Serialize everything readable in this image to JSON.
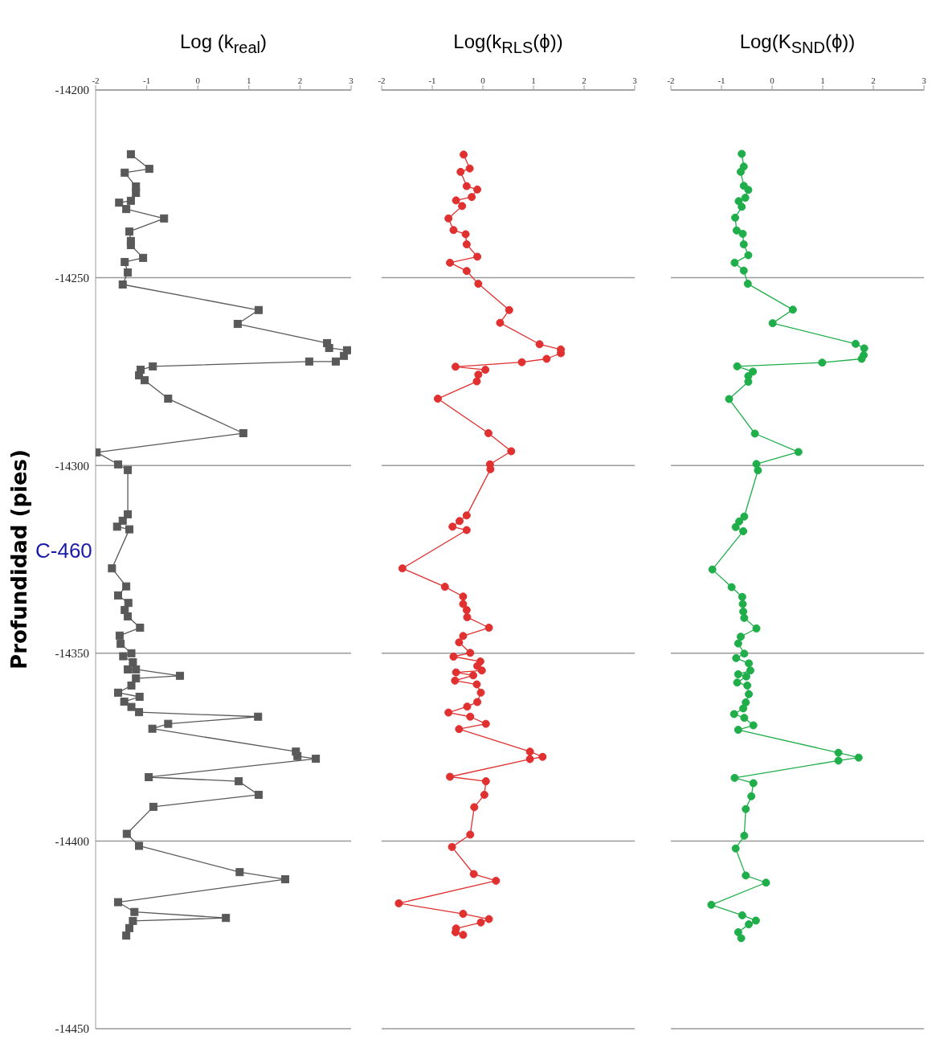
{
  "chart_data": [
    {
      "type": "line",
      "title": "Log (k$_{real}$)",
      "ylabel": "Profundidad (pies)",
      "annotations": [
        "C-460"
      ],
      "color": "#595959",
      "marker": "square",
      "grid": "y",
      "xlim": [
        -2,
        3
      ],
      "xticks": [
        -2,
        -1,
        0,
        1,
        2,
        3
      ],
      "ylim": [
        -14450,
        -14200
      ],
      "yticks": [
        -14450,
        -14400,
        -14350,
        -14300,
        -14250,
        -14200
      ],
      "x": [
        -1.31,
        -0.95,
        -1.43,
        -1.21,
        -1.21,
        -1.31,
        -1.54,
        -1.4,
        -0.66,
        -1.34,
        -1.31,
        -1.31,
        -1.07,
        -1.43,
        -1.37,
        -1.47,
        1.19,
        0.78,
        2.53,
        2.57,
        2.92,
        2.86,
        2.7,
        2.18,
        -0.88,
        -1.12,
        -1.15,
        -1.04,
        -0.58,
        0.89,
        -1.98,
        -1.56,
        -1.37,
        -1.37,
        -1.47,
        -1.58,
        -1.34,
        -1.68,
        -1.4,
        -1.56,
        -1.36,
        -1.43,
        -1.37,
        -1.13,
        -1.53,
        -1.51,
        -1.3,
        -1.46,
        -1.27,
        -1.37,
        -1.21,
        -0.35,
        -1.21,
        -1.3,
        -1.56,
        -1.14,
        -1.44,
        -1.3,
        -1.15,
        1.18,
        -0.58,
        -0.89,
        1.92,
        1.95,
        2.31,
        -0.96,
        0.8,
        1.19,
        -0.87,
        -1.39,
        -1.15,
        0.82,
        1.71,
        -1.56,
        -1.24,
        0.55,
        -1.27,
        -1.34,
        -1.4
      ],
      "values": [
        -14217.1,
        -14221.0,
        -14222.0,
        -14225.7,
        -14227.4,
        -14229.5,
        -14230.0,
        -14231.7,
        -14234.2,
        -14237.7,
        -14240.2,
        -14241.3,
        -14244.7,
        -14245.8,
        -14248.6,
        -14251.8,
        -14258.6,
        -14262.3,
        -14267.4,
        -14268.7,
        -14269.3,
        -14270.8,
        -14272.3,
        -14272.3,
        -14273.6,
        -14274.5,
        -14276.0,
        -14277.3,
        -14282.2,
        -14291.4,
        -14296.5,
        -14299.7,
        -14301.2,
        -14313.0,
        -14314.7,
        -14316.3,
        -14317.0,
        -14327.4,
        -14332.2,
        -14334.6,
        -14336.6,
        -14338.5,
        -14340.2,
        -14343.2,
        -14345.3,
        -14347.5,
        -14350.0,
        -14350.8,
        -14352.4,
        -14354.3,
        -14354.3,
        -14356.0,
        -14356.7,
        -14358.6,
        -14360.5,
        -14361.6,
        -14362.9,
        -14364.3,
        -14365.7,
        -14366.9,
        -14368.8,
        -14370.1,
        -14376.2,
        -14377.4,
        -14378.1,
        -14383.0,
        -14384.1,
        -14387.7,
        -14390.9,
        -14398.1,
        -14401.3,
        -14408.3,
        -14410.2,
        -14416.3,
        -14418.9,
        -14420.5,
        -14421.3,
        -14423.2,
        -14425.2
      ]
    },
    {
      "type": "line",
      "title": "Log(k$_{RLS}$(ϕ))",
      "color": "#e03030",
      "marker": "circle",
      "grid": "y",
      "tick_labels": "x",
      "xlim": [
        -2,
        3
      ],
      "xticks": [
        -2,
        -1,
        0,
        1,
        2,
        3
      ],
      "ylim": [
        -14450,
        -14200
      ],
      "yticks": [
        -14450,
        -14400,
        -14350,
        -14300,
        -14250,
        -14200
      ],
      "x": [
        -0.38,
        -0.26,
        -0.44,
        -0.32,
        -0.11,
        -0.22,
        -0.53,
        -0.41,
        -0.68,
        -0.58,
        -0.34,
        -0.32,
        -0.11,
        -0.65,
        -0.32,
        -0.09,
        0.52,
        0.34,
        1.12,
        1.54,
        1.54,
        1.26,
        0.77,
        -0.54,
        0.05,
        -0.09,
        -0.12,
        -0.89,
        0.11,
        0.56,
        0.14,
        0.15,
        -0.32,
        -0.46,
        -0.6,
        -0.32,
        -1.59,
        -0.75,
        -0.39,
        -0.39,
        -0.32,
        -0.31,
        0.12,
        -0.39,
        -0.47,
        -0.25,
        -0.58,
        -0.05,
        -0.11,
        -0.02,
        -0.53,
        -0.19,
        -0.55,
        -0.12,
        -0.04,
        -0.11,
        -0.31,
        -0.68,
        -0.25,
        0.06,
        -0.47,
        0.93,
        1.18,
        0.93,
        -0.65,
        0.06,
        0.03,
        -0.17,
        -0.25,
        -0.61,
        -0.18,
        0.26,
        -1.66,
        -0.39,
        0.12,
        -0.04,
        -0.53,
        -0.54,
        -0.39
      ],
      "values": [
        -14217.2,
        -14220.9,
        -14221.8,
        -14225.6,
        -14226.5,
        -14228.5,
        -14229.4,
        -14230.9,
        -14234.2,
        -14237.3,
        -14238.4,
        -14241.1,
        -14244.4,
        -14246.0,
        -14248.2,
        -14251.6,
        -14258.6,
        -14262.0,
        -14267.7,
        -14269.1,
        -14270.1,
        -14271.6,
        -14272.5,
        -14273.7,
        -14274.5,
        -14275.8,
        -14277.6,
        -14282.2,
        -14291.4,
        -14296.2,
        -14299.7,
        -14301.0,
        -14313.3,
        -14314.8,
        -14316.3,
        -14317.2,
        -14327.4,
        -14332.3,
        -14334.9,
        -14336.9,
        -14338.5,
        -14340.4,
        -14343.2,
        -14345.4,
        -14347.1,
        -14349.9,
        -14350.9,
        -14352.2,
        -14353.4,
        -14354.6,
        -14355.1,
        -14355.9,
        -14357.3,
        -14358.3,
        -14360.5,
        -14363.0,
        -14364.2,
        -14365.8,
        -14366.9,
        -14368.8,
        -14370.2,
        -14376.2,
        -14377.6,
        -14378.2,
        -14382.9,
        -14384.1,
        -14387.7,
        -14391.0,
        -14398.3,
        -14401.6,
        -14408.8,
        -14410.6,
        -14416.6,
        -14419.4,
        -14420.8,
        -14421.7,
        -14423.3,
        -14424.3,
        -14425.0
      ]
    },
    {
      "type": "line",
      "title": "Log(K$_{SND}$(ϕ))",
      "color": "#1fae4a",
      "marker": "circle",
      "grid": "y",
      "tick_labels": "x",
      "xlim": [
        -2,
        3
      ],
      "xticks": [
        -2,
        -1,
        0,
        1,
        2,
        3
      ],
      "ylim": [
        -14450,
        -14200
      ],
      "yticks": [
        -14450,
        -14400,
        -14350,
        -14300,
        -14250,
        -14200
      ],
      "x": [
        -0.6,
        -0.56,
        -0.62,
        -0.56,
        -0.47,
        -0.53,
        -0.66,
        -0.6,
        -0.73,
        -0.7,
        -0.58,
        -0.56,
        -0.47,
        -0.74,
        -0.56,
        -0.48,
        0.41,
        0.01,
        1.65,
        1.82,
        1.81,
        1.77,
        0.99,
        -0.69,
        -0.38,
        -0.47,
        -0.47,
        -0.85,
        -0.34,
        0.52,
        -0.31,
        -0.28,
        -0.55,
        -0.65,
        -0.72,
        -0.57,
        -1.18,
        -0.8,
        -0.59,
        -0.58,
        -0.57,
        -0.55,
        -0.31,
        -0.62,
        -0.67,
        -0.55,
        -0.71,
        -0.46,
        -0.43,
        -0.67,
        -0.51,
        -0.69,
        -0.49,
        -0.46,
        -0.52,
        -0.57,
        -0.75,
        -0.55,
        -0.37,
        -0.67,
        1.31,
        1.71,
        1.31,
        -0.74,
        -0.37,
        -0.41,
        -0.52,
        -0.55,
        -0.72,
        -0.52,
        -0.12,
        -1.2,
        -0.59,
        -0.32,
        -0.46,
        -0.67,
        -0.61
      ],
      "values": [
        -14217.0,
        -14220.4,
        -14221.8,
        -14225.5,
        -14226.6,
        -14228.7,
        -14229.6,
        -14231.1,
        -14234.0,
        -14237.4,
        -14238.3,
        -14241.1,
        -14244.0,
        -14246.0,
        -14248.1,
        -14251.6,
        -14258.5,
        -14262.1,
        -14267.6,
        -14268.8,
        -14270.6,
        -14271.6,
        -14272.6,
        -14273.6,
        -14275.0,
        -14276.2,
        -14277.7,
        -14282.3,
        -14291.5,
        -14296.4,
        -14299.6,
        -14301.3,
        -14313.6,
        -14314.9,
        -14316.4,
        -14317.5,
        -14327.7,
        -14332.4,
        -14335.0,
        -14336.9,
        -14338.9,
        -14340.6,
        -14343.4,
        -14345.6,
        -14347.4,
        -14350.1,
        -14351.3,
        -14352.7,
        -14354.6,
        -14355.6,
        -14356.2,
        -14357.8,
        -14358.6,
        -14360.9,
        -14363.1,
        -14364.7,
        -14366.2,
        -14367.2,
        -14369.2,
        -14370.4,
        -14376.5,
        -14377.8,
        -14378.6,
        -14383.2,
        -14384.6,
        -14388.1,
        -14391.5,
        -14398.6,
        -14402.0,
        -14409.2,
        -14411.1,
        -14417.0,
        -14419.8,
        -14421.2,
        -14422.2,
        -14424.3,
        -14425.9
      ]
    }
  ]
}
